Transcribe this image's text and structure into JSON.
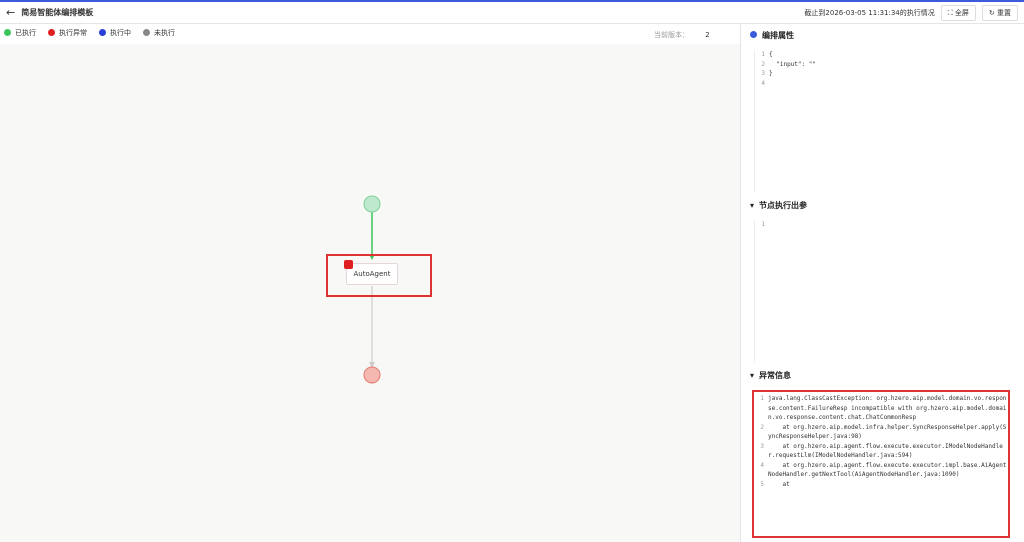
{
  "header": {
    "title": "简易智能体编排模板",
    "status": "截止到2026-03-05 11:31:34的执行情况",
    "fullscreen": "全屏",
    "reset": "重置"
  },
  "legend": [
    {
      "label": "已执行",
      "color": "#3cc45a"
    },
    {
      "label": "执行异常",
      "color": "#e02020"
    },
    {
      "label": "执行中",
      "color": "#2a3fd6"
    },
    {
      "label": "未执行",
      "color": "#888888"
    }
  ],
  "version": {
    "label": "当前版本：",
    "value": "2"
  },
  "flow": {
    "node": {
      "label": "AutoAgent"
    }
  },
  "panels": [
    {
      "title": "编排属性",
      "lines": [
        {
          "number": "1",
          "text": "{"
        },
        {
          "number": "2",
          "text": "  \"input\": \"\""
        },
        {
          "number": "3",
          "text": "}"
        },
        {
          "number": "4",
          "text": ""
        }
      ]
    },
    {
      "title": "节点执行出参",
      "lines": [
        {
          "number": "1",
          "text": ""
        }
      ]
    },
    {
      "title": "异常信息",
      "lines": [
        {
          "number": "1",
          "text": "java.lang.ClassCastException: org.hzero.aip.model.domain.vo.response.content.FailureResp incompatible with org.hzero.aip.model.domain.vo.response.content.chat.ChatCommonResp"
        },
        {
          "number": "2",
          "text": "    at org.hzero.aip.model.infra.helper.SyncResponseHelper.apply(SyncResponseHelper.java:98)"
        },
        {
          "number": "3",
          "text": "    at org.hzero.aip.agent.flow.execute.executor.IModelNodeHandler.requestLlm(IModelNodeHandler.java:594)"
        },
        {
          "number": "4",
          "text": "    at org.hzero.aip.agent.flow.execute.executor.impl.base.AiAgentNodeHandler.getNextTool(AiAgentNodeHandler.java:1090)"
        },
        {
          "number": "5",
          "text": "    at"
        }
      ]
    }
  ]
}
